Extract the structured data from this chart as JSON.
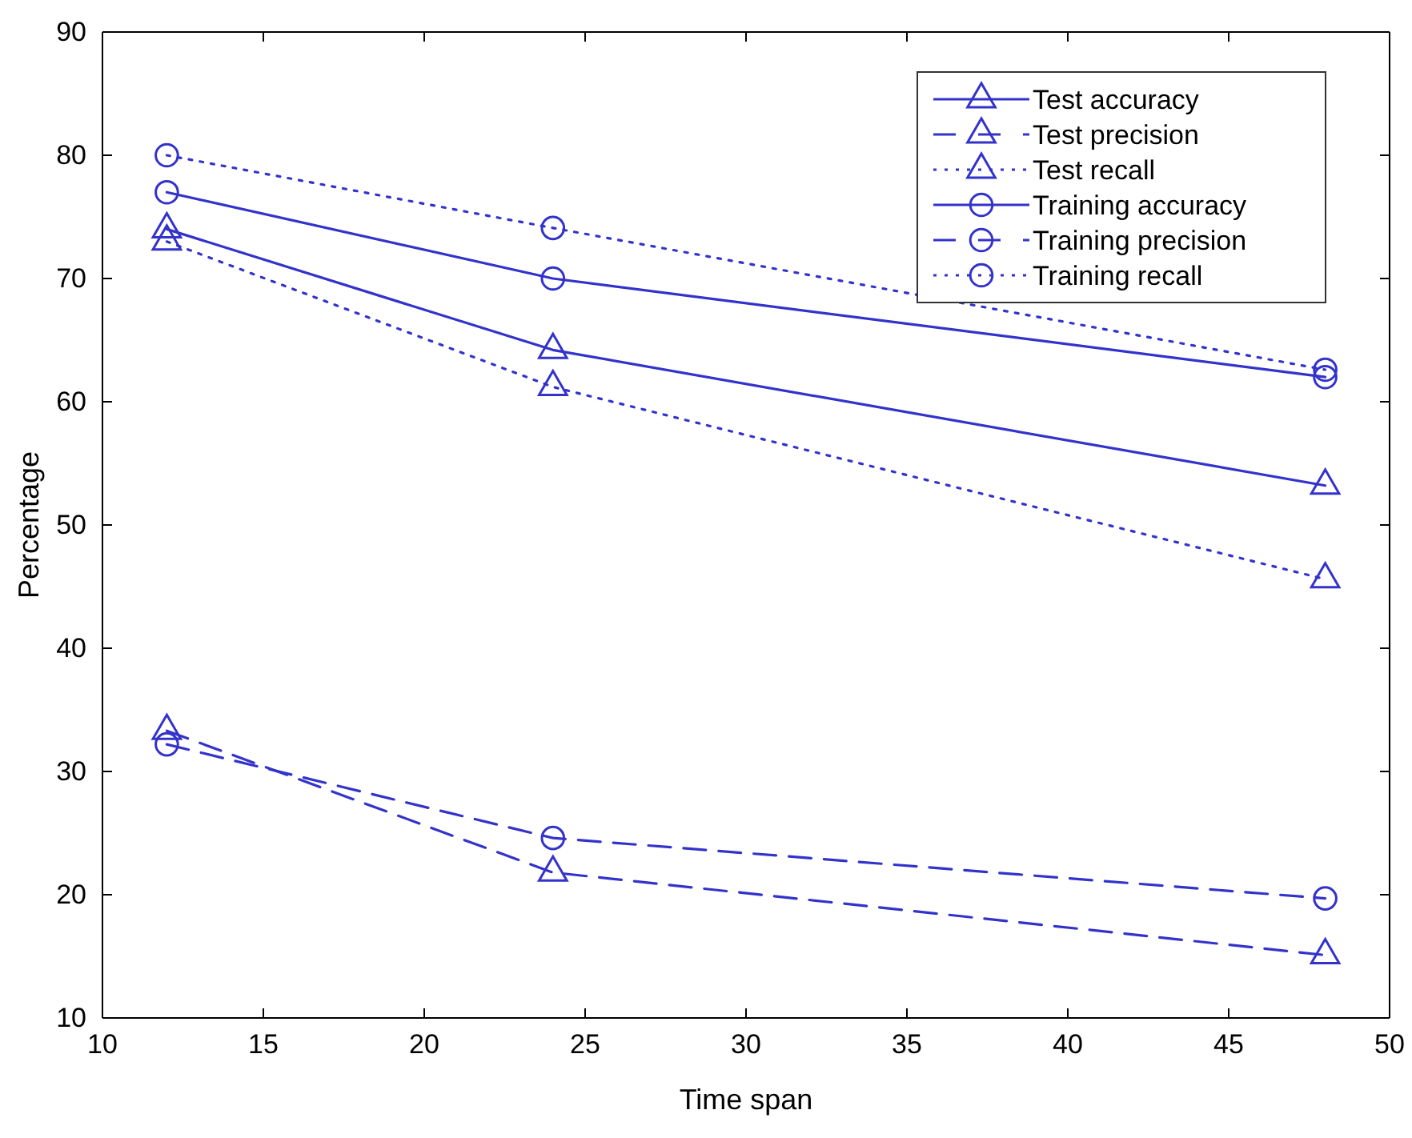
{
  "chart_data": {
    "type": "line",
    "xlabel": "Time span",
    "ylabel": "Percentage",
    "x": [
      12,
      24,
      48
    ],
    "xlim": [
      10,
      50
    ],
    "xticks": [
      10,
      15,
      20,
      25,
      30,
      35,
      40,
      45,
      50
    ],
    "ylim": [
      10,
      90
    ],
    "yticks": [
      10,
      20,
      30,
      40,
      50,
      60,
      70,
      80,
      90
    ],
    "grid": false,
    "legend": "top right",
    "series": [
      {
        "name": "Test accuracy",
        "color": "#3333cc",
        "marker": "triangle",
        "line_style": "solid",
        "values": [
          74,
          64.2,
          53.2
        ]
      },
      {
        "name": "Test precision",
        "color": "#3333cc",
        "marker": "triangle",
        "line_style": "dashed",
        "values": [
          33.3,
          21.8,
          15.1
        ]
      },
      {
        "name": "Test recall",
        "color": "#3333cc",
        "marker": "triangle",
        "line_style": "dotted",
        "values": [
          73,
          61.2,
          45.6
        ]
      },
      {
        "name": "Training accuracy",
        "color": "#3333cc",
        "marker": "circle",
        "line_style": "solid",
        "values": [
          77,
          70,
          62
        ]
      },
      {
        "name": "Training precision",
        "color": "#3333cc",
        "marker": "circle",
        "line_style": "dashed",
        "values": [
          32.2,
          24.6,
          19.7
        ]
      },
      {
        "name": "Training recall",
        "color": "#3333cc",
        "marker": "circle",
        "line_style": "dotted",
        "values": [
          80,
          74.1,
          62.6
        ]
      }
    ]
  }
}
